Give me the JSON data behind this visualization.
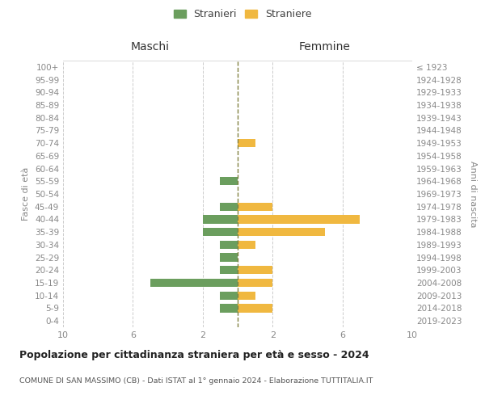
{
  "age_groups": [
    "0-4",
    "5-9",
    "10-14",
    "15-19",
    "20-24",
    "25-29",
    "30-34",
    "35-39",
    "40-44",
    "45-49",
    "50-54",
    "55-59",
    "60-64",
    "65-69",
    "70-74",
    "75-79",
    "80-84",
    "85-89",
    "90-94",
    "95-99",
    "100+"
  ],
  "birth_years": [
    "2019-2023",
    "2014-2018",
    "2009-2013",
    "2004-2008",
    "1999-2003",
    "1994-1998",
    "1989-1993",
    "1984-1988",
    "1979-1983",
    "1974-1978",
    "1969-1973",
    "1964-1968",
    "1959-1963",
    "1954-1958",
    "1949-1953",
    "1944-1948",
    "1939-1943",
    "1934-1938",
    "1929-1933",
    "1924-1928",
    "≤ 1923"
  ],
  "maschi_stranieri": [
    0,
    1,
    1,
    5,
    1,
    1,
    1,
    2,
    2,
    1,
    0,
    1,
    0,
    0,
    0,
    0,
    0,
    0,
    0,
    0,
    0
  ],
  "femmine_straniere": [
    0,
    2,
    1,
    2,
    2,
    0,
    1,
    5,
    7,
    2,
    0,
    0,
    0,
    0,
    1,
    0,
    0,
    0,
    0,
    0,
    0
  ],
  "color_maschi": "#6b9e5e",
  "color_femmine": "#f0b840",
  "color_center_line": "#808040",
  "xlim": 10,
  "xlabel_left": "Maschi",
  "xlabel_right": "Femmine",
  "ylabel_left": "Fasce di età",
  "ylabel_right": "Anni di nascita",
  "title": "Popolazione per cittadinanza straniera per età e sesso - 2024",
  "subtitle": "COMUNE DI SAN MASSIMO (CB) - Dati ISTAT al 1° gennaio 2024 - Elaborazione TUTTITALIA.IT",
  "legend_stranieri": "Stranieri",
  "legend_straniere": "Straniere",
  "background_color": "#ffffff",
  "grid_color": "#cccccc"
}
